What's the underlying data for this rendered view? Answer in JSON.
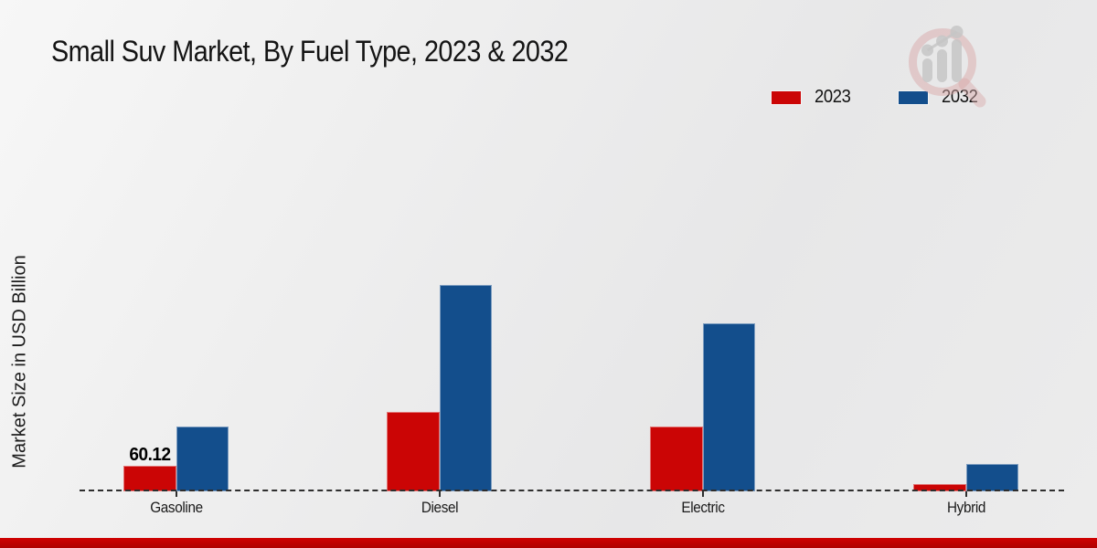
{
  "header": {
    "title": "Small Suv Market, By Fuel Type, 2023 & 2032"
  },
  "legend": {
    "items": [
      {
        "label": "2023",
        "color": "#cb0505"
      },
      {
        "label": "2032",
        "color": "#134e8c"
      }
    ]
  },
  "watermark": {
    "name": "magnifier-growth-chart-logo"
  },
  "footer": {
    "accent_color": "#c00000"
  },
  "chart_data": {
    "type": "bar",
    "title": "Small Suv Market, By Fuel Type, 2023 & 2032",
    "xlabel": "",
    "ylabel": "Market Size in USD Billion",
    "categories": [
      "Gasoline",
      "Diesel",
      "Electric",
      "Hybrid"
    ],
    "series": [
      {
        "name": "2023",
        "color": "#cb0505",
        "values": [
          60.12,
          187,
          152,
          18
        ]
      },
      {
        "name": "2032",
        "color": "#134e8c",
        "values": [
          152,
          485,
          395,
          64
        ]
      }
    ],
    "data_labels": [
      {
        "series_index": 0,
        "category_index": 0,
        "text": "60.12"
      }
    ],
    "ylim": [
      0,
      520
    ],
    "grid": false,
    "y_axis_tick_labels_visible": false,
    "legend_position": "top-right",
    "baseline_style": "dashed"
  }
}
